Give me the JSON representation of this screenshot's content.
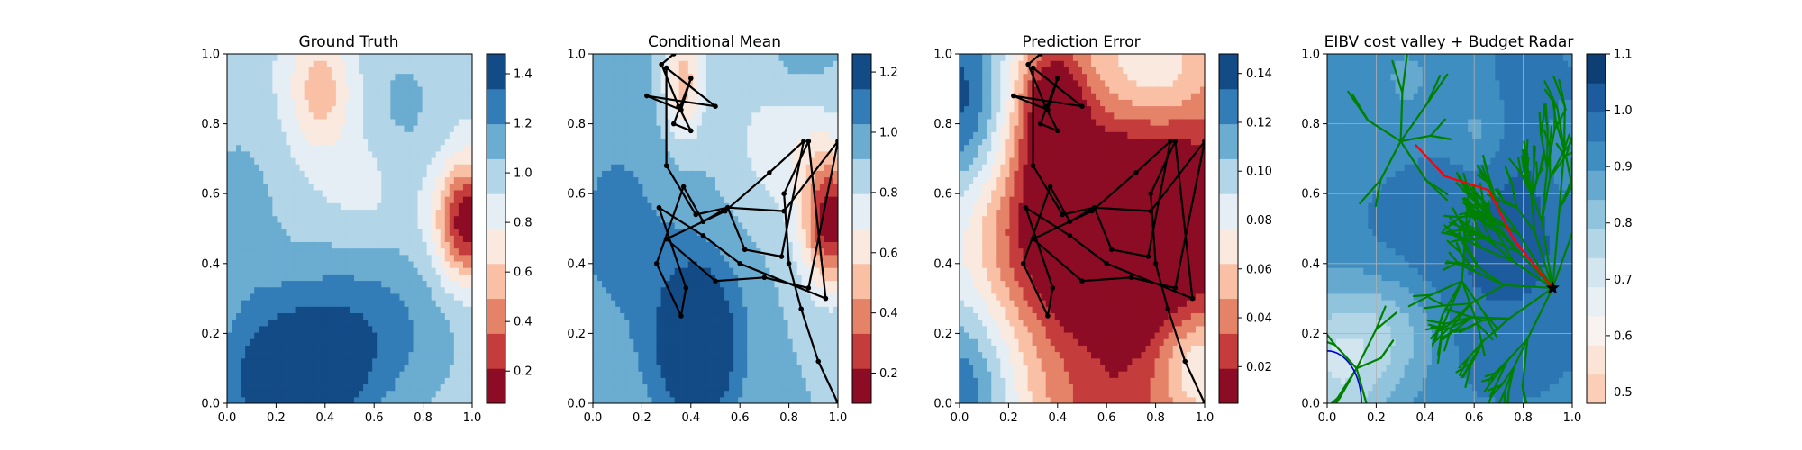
{
  "chart_data": [
    {
      "type": "heatmap",
      "title": "Ground Truth",
      "xlim": [
        0,
        1
      ],
      "ylim": [
        0,
        1
      ],
      "xticks": [
        "0.0",
        "0.2",
        "0.4",
        "0.6",
        "0.8",
        "1.0"
      ],
      "yticks": [
        "0.0",
        "0.2",
        "0.4",
        "0.6",
        "0.8",
        "1.0"
      ],
      "colormap": "RdBu",
      "colorbar": {
        "min": 0.07,
        "max": 1.48,
        "ticks": [
          "0.2",
          "0.4",
          "0.6",
          "0.8",
          "1.0",
          "1.2",
          "1.4"
        ],
        "tick_values": [
          0.2,
          0.4,
          0.6,
          0.8,
          1.0,
          1.2,
          1.4
        ]
      }
    },
    {
      "type": "heatmap",
      "title": "Conditional Mean",
      "xlim": [
        0,
        1
      ],
      "ylim": [
        0,
        1
      ],
      "xticks": [
        "0.0",
        "0.2",
        "0.4",
        "0.6",
        "0.8",
        "1.0"
      ],
      "yticks": [
        "0.0",
        "0.2",
        "0.4",
        "0.6",
        "0.8",
        "1.0"
      ],
      "colormap": "RdBu",
      "colorbar": {
        "min": 0.1,
        "max": 1.26,
        "ticks": [
          "0.2",
          "0.4",
          "0.6",
          "0.8",
          "1.0",
          "1.2"
        ],
        "tick_values": [
          0.2,
          0.4,
          0.6,
          0.8,
          1.0,
          1.2
        ]
      },
      "path": [
        [
          1.0,
          0.0
        ],
        [
          0.92,
          0.12
        ],
        [
          0.85,
          0.27
        ],
        [
          0.8,
          0.4
        ],
        [
          0.78,
          0.6
        ],
        [
          0.88,
          0.75
        ],
        [
          0.95,
          0.3
        ],
        [
          0.6,
          0.4
        ],
        [
          0.45,
          0.48
        ],
        [
          0.27,
          0.56
        ],
        [
          0.38,
          0.33
        ],
        [
          0.36,
          0.25
        ],
        [
          0.26,
          0.4
        ],
        [
          0.37,
          0.62
        ],
        [
          0.45,
          0.52
        ],
        [
          0.55,
          0.56
        ],
        [
          0.78,
          0.55
        ],
        [
          1.0,
          0.75
        ],
        [
          0.88,
          0.33
        ],
        [
          0.7,
          0.36
        ],
        [
          0.5,
          0.35
        ],
        [
          0.3,
          0.47
        ],
        [
          0.54,
          0.55
        ],
        [
          0.72,
          0.66
        ],
        [
          0.86,
          0.75
        ],
        [
          0.77,
          0.42
        ],
        [
          0.62,
          0.44
        ],
        [
          0.55,
          0.56
        ],
        [
          0.42,
          0.54
        ],
        [
          0.3,
          0.68
        ],
        [
          0.3,
          0.96
        ],
        [
          0.5,
          0.85
        ],
        [
          0.22,
          0.88
        ],
        [
          0.36,
          0.84
        ],
        [
          0.4,
          0.93
        ],
        [
          0.33,
          0.8
        ],
        [
          0.4,
          0.78
        ],
        [
          0.35,
          0.85
        ],
        [
          0.28,
          0.97
        ],
        [
          0.33,
          1.0
        ]
      ]
    },
    {
      "type": "heatmap",
      "title": "Prediction Error",
      "xlim": [
        0,
        1
      ],
      "ylim": [
        0,
        1
      ],
      "xticks": [
        "0.0",
        "0.2",
        "0.4",
        "0.6",
        "0.8",
        "1.0"
      ],
      "yticks": [
        "0.0",
        "0.2",
        "0.4",
        "0.6",
        "0.8",
        "1.0"
      ],
      "colormap": "RdBu",
      "colorbar": {
        "min": 0.005,
        "max": 0.148,
        "ticks": [
          "0.02",
          "0.04",
          "0.06",
          "0.08",
          "0.10",
          "0.12",
          "0.14"
        ],
        "tick_values": [
          0.02,
          0.04,
          0.06,
          0.08,
          0.1,
          0.12,
          0.14
        ]
      },
      "path": [
        [
          1.0,
          0.0
        ],
        [
          0.92,
          0.12
        ],
        [
          0.85,
          0.27
        ],
        [
          0.8,
          0.4
        ],
        [
          0.78,
          0.6
        ],
        [
          0.88,
          0.75
        ],
        [
          0.95,
          0.3
        ],
        [
          0.6,
          0.4
        ],
        [
          0.45,
          0.48
        ],
        [
          0.27,
          0.56
        ],
        [
          0.38,
          0.33
        ],
        [
          0.36,
          0.25
        ],
        [
          0.26,
          0.4
        ],
        [
          0.37,
          0.62
        ],
        [
          0.45,
          0.52
        ],
        [
          0.55,
          0.56
        ],
        [
          0.78,
          0.55
        ],
        [
          1.0,
          0.75
        ],
        [
          0.88,
          0.33
        ],
        [
          0.7,
          0.36
        ],
        [
          0.5,
          0.35
        ],
        [
          0.3,
          0.47
        ],
        [
          0.54,
          0.55
        ],
        [
          0.72,
          0.66
        ],
        [
          0.86,
          0.75
        ],
        [
          0.77,
          0.42
        ],
        [
          0.62,
          0.44
        ],
        [
          0.55,
          0.56
        ],
        [
          0.42,
          0.54
        ],
        [
          0.3,
          0.68
        ],
        [
          0.3,
          0.96
        ],
        [
          0.5,
          0.85
        ],
        [
          0.22,
          0.88
        ],
        [
          0.36,
          0.84
        ],
        [
          0.4,
          0.93
        ],
        [
          0.33,
          0.8
        ],
        [
          0.4,
          0.78
        ],
        [
          0.35,
          0.85
        ],
        [
          0.28,
          0.97
        ],
        [
          0.33,
          1.0
        ]
      ]
    },
    {
      "type": "heatmap",
      "title": "EIBV cost valley + Budget Radar",
      "xlim": [
        0,
        1
      ],
      "ylim": [
        0,
        1
      ],
      "xticks": [
        "0.0",
        "0.2",
        "0.4",
        "0.6",
        "0.8",
        "1.0"
      ],
      "yticks": [
        "0.0",
        "0.2",
        "0.4",
        "0.6",
        "0.8",
        "1.0"
      ],
      "colormap": "RdBu",
      "grid": true,
      "colorbar": {
        "min": 0.48,
        "max": 1.1,
        "ticks": [
          "0.5",
          "0.6",
          "0.7",
          "0.8",
          "0.9",
          "1.0",
          "1.1"
        ],
        "tick_values": [
          0.5,
          0.6,
          0.7,
          0.8,
          0.9,
          1.0,
          1.1
        ]
      },
      "current_location": [
        0.92,
        0.33
      ],
      "planned_path": [
        [
          0.92,
          0.33
        ],
        [
          0.76,
          0.47
        ],
        [
          0.66,
          0.61
        ],
        [
          0.48,
          0.65
        ],
        [
          0.36,
          0.74
        ]
      ],
      "tree_color": "#008000",
      "planned_path_color": "#ff0000",
      "radar_color": "#0000cc"
    }
  ]
}
